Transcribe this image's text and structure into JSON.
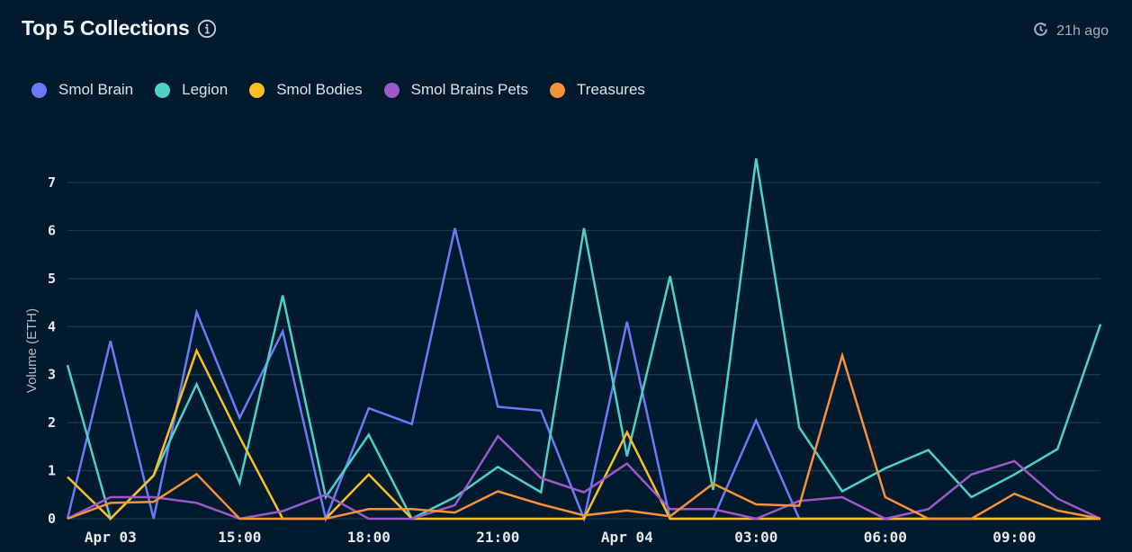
{
  "header": {
    "title": "Top 5 Collections",
    "info_icon": "info-icon",
    "updated_icon": "clock-refresh-icon",
    "updated_text": "21h ago"
  },
  "chart_data": {
    "type": "line",
    "title": "Top 5 Collections",
    "xlabel": "",
    "ylabel": "Volume (ETH)",
    "ylim": [
      0,
      7
    ],
    "y_ticks": [
      0,
      1,
      2,
      3,
      4,
      5,
      6,
      7
    ],
    "grid": true,
    "legend": "top-left",
    "x": [
      "Apr 03 11:00",
      "12:00",
      "13:00",
      "14:00",
      "15:00",
      "16:00",
      "17:00",
      "18:00",
      "19:00",
      "20:00",
      "21:00",
      "22:00",
      "23:00",
      "Apr 04 00:00",
      "01:00",
      "02:00",
      "03:00",
      "04:00",
      "05:00",
      "06:00",
      "07:00",
      "08:00",
      "09:00",
      "10:00",
      "11:00"
    ],
    "x_tick_labels": [
      {
        "index": 1,
        "label": "Apr 03"
      },
      {
        "index": 4,
        "label": "15:00"
      },
      {
        "index": 7,
        "label": "18:00"
      },
      {
        "index": 10,
        "label": "21:00"
      },
      {
        "index": 13,
        "label": "Apr 04"
      },
      {
        "index": 16,
        "label": "03:00"
      },
      {
        "index": 19,
        "label": "06:00"
      },
      {
        "index": 22,
        "label": "09:00"
      }
    ],
    "series": [
      {
        "name": "Smol Brain",
        "color": "#6b7bf7",
        "values": [
          0,
          3.7,
          0,
          4.3,
          2.1,
          3.9,
          0,
          2.3,
          1.97,
          6.05,
          2.33,
          2.25,
          0,
          4.1,
          0,
          0,
          2.05,
          0,
          0,
          0,
          0,
          0,
          0,
          0,
          0
        ]
      },
      {
        "name": "Legion",
        "color": "#4fd1c5",
        "values": [
          3.2,
          0,
          0.9,
          2.8,
          0.75,
          4.65,
          0.45,
          1.75,
          0,
          0.45,
          1.08,
          0.55,
          6.05,
          1.3,
          5.05,
          0.6,
          7.5,
          1.9,
          0.57,
          1.05,
          1.43,
          0.45,
          0.92,
          1.45,
          4.05
        ]
      },
      {
        "name": "Smol Bodies",
        "color": "#fbbf24",
        "values": [
          0.87,
          0,
          0.9,
          3.5,
          1.7,
          0,
          0,
          0.92,
          0,
          0,
          0,
          0,
          0,
          1.8,
          0,
          0,
          0,
          0,
          0,
          0,
          0,
          0,
          0,
          0,
          0
        ]
      },
      {
        "name": "Smol Brains Pets",
        "color": "#9b59c9",
        "values": [
          0,
          0.45,
          0.45,
          0.33,
          0,
          0.16,
          0.5,
          0,
          0,
          0.28,
          1.72,
          0.85,
          0.55,
          1.15,
          0.2,
          0.2,
          0,
          0.37,
          0.45,
          0,
          0.2,
          0.92,
          1.2,
          0.42,
          0
        ]
      },
      {
        "name": "Treasures",
        "color": "#f6913c",
        "values": [
          0,
          0.33,
          0.35,
          0.93,
          0,
          0,
          0,
          0.2,
          0.2,
          0.13,
          0.57,
          0.3,
          0.07,
          0.17,
          0.05,
          0.73,
          0.3,
          0.27,
          3.4,
          0.45,
          0,
          0,
          0.52,
          0.17,
          0
        ]
      }
    ]
  },
  "colors": {
    "background": "#021a2e",
    "grid": "#1b3a55"
  }
}
